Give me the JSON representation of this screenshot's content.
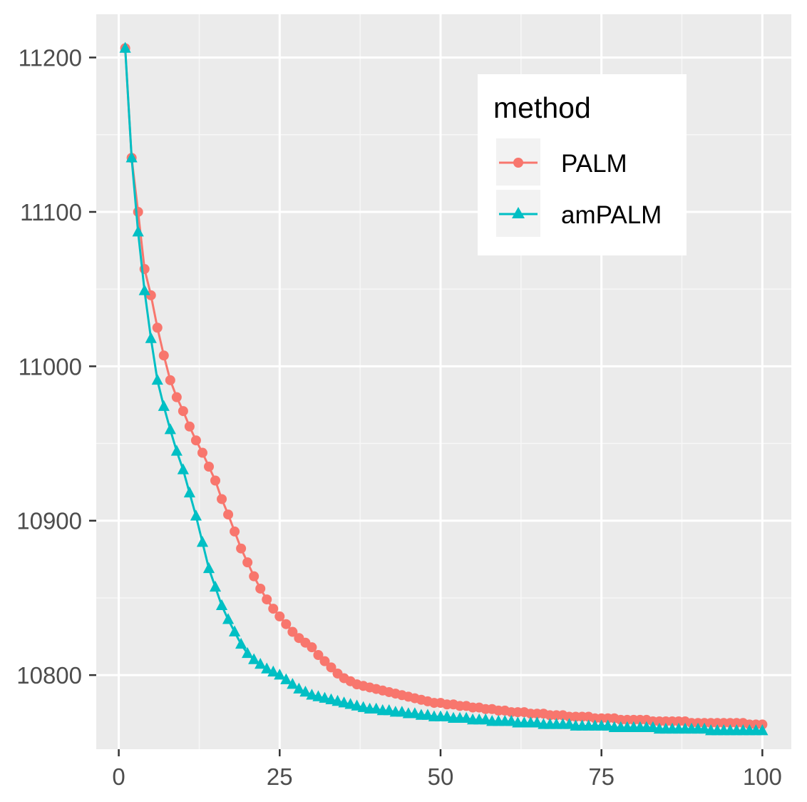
{
  "chart_data": {
    "type": "line",
    "title": "",
    "xlabel": "",
    "ylabel": "",
    "xlim": [
      -3.5,
      104.5
    ],
    "ylim": [
      10752,
      11228
    ],
    "x_ticks": [
      0,
      25,
      50,
      75,
      100
    ],
    "x_tick_labels": [
      "0",
      "25",
      "50",
      "75",
      "100"
    ],
    "y_ticks": [
      10800,
      10900,
      11000,
      11100,
      11200
    ],
    "y_tick_labels": [
      "10800",
      "10900",
      "11000",
      "11100",
      "11200"
    ],
    "grid": true,
    "legend": {
      "title": "method",
      "position": "top-right",
      "entries": [
        "PALM",
        "amPALM"
      ]
    },
    "series": [
      {
        "name": "PALM",
        "color": "#F8766D",
        "marker": "circle",
        "x": [
          1,
          2,
          3,
          4,
          5,
          6,
          7,
          8,
          9,
          10,
          11,
          12,
          13,
          14,
          15,
          16,
          17,
          18,
          19,
          20,
          21,
          22,
          23,
          24,
          25,
          26,
          27,
          28,
          29,
          30,
          31,
          32,
          33,
          34,
          35,
          36,
          37,
          38,
          39,
          40,
          41,
          42,
          43,
          44,
          45,
          46,
          47,
          48,
          49,
          50,
          51,
          52,
          53,
          54,
          55,
          56,
          57,
          58,
          59,
          60,
          61,
          62,
          63,
          64,
          65,
          66,
          67,
          68,
          69,
          70,
          71,
          72,
          73,
          74,
          75,
          76,
          77,
          78,
          79,
          80,
          81,
          82,
          83,
          84,
          85,
          86,
          87,
          88,
          89,
          90,
          91,
          92,
          93,
          94,
          95,
          96,
          97,
          98,
          99,
          100
        ],
        "values": [
          11206,
          11135,
          11100,
          11063,
          11046,
          11025,
          11007,
          10991,
          10980,
          10971,
          10961,
          10952,
          10944,
          10935,
          10926,
          10914,
          10904,
          10893,
          10882,
          10873,
          10864,
          10856,
          10849,
          10843,
          10838,
          10833,
          10828,
          10824,
          10821,
          10818,
          10813,
          10809,
          10805,
          10801,
          10798,
          10796,
          10794,
          10793,
          10792,
          10791,
          10790,
          10789,
          10788,
          10787,
          10786,
          10785,
          10784,
          10783,
          10782,
          10782,
          10781,
          10781,
          10780,
          10780,
          10779,
          10779,
          10778,
          10778,
          10777,
          10777,
          10776,
          10776,
          10776,
          10775,
          10775,
          10775,
          10774,
          10774,
          10774,
          10773,
          10773,
          10773,
          10773,
          10772,
          10772,
          10772,
          10772,
          10771,
          10771,
          10771,
          10771,
          10771,
          10770,
          10770,
          10770,
          10770,
          10770,
          10770,
          10769,
          10769,
          10769,
          10769,
          10769,
          10769,
          10769,
          10769,
          10769,
          10768,
          10768,
          10768
        ]
      },
      {
        "name": "amPALM",
        "color": "#00BFC4",
        "marker": "triangle",
        "x": [
          1,
          2,
          3,
          4,
          5,
          6,
          7,
          8,
          9,
          10,
          11,
          12,
          13,
          14,
          15,
          16,
          17,
          18,
          19,
          20,
          21,
          22,
          23,
          24,
          25,
          26,
          27,
          28,
          29,
          30,
          31,
          32,
          33,
          34,
          35,
          36,
          37,
          38,
          39,
          40,
          41,
          42,
          43,
          44,
          45,
          46,
          47,
          48,
          49,
          50,
          51,
          52,
          53,
          54,
          55,
          56,
          57,
          58,
          59,
          60,
          61,
          62,
          63,
          64,
          65,
          66,
          67,
          68,
          69,
          70,
          71,
          72,
          73,
          74,
          75,
          76,
          77,
          78,
          79,
          80,
          81,
          82,
          83,
          84,
          85,
          86,
          87,
          88,
          89,
          90,
          91,
          92,
          93,
          94,
          95,
          96,
          97,
          98,
          99,
          100
        ],
        "values": [
          11206,
          11135,
          11087,
          11049,
          11018,
          10991,
          10974,
          10959,
          10945,
          10933,
          10918,
          10903,
          10886,
          10869,
          10857,
          10845,
          10836,
          10828,
          10820,
          10814,
          10810,
          10807,
          10804,
          10802,
          10800,
          10797,
          10794,
          10791,
          10789,
          10787,
          10786,
          10785,
          10784,
          10783,
          10782,
          10781,
          10780,
          10779,
          10778,
          10778,
          10777,
          10777,
          10776,
          10776,
          10775,
          10775,
          10774,
          10774,
          10773,
          10773,
          10773,
          10772,
          10772,
          10772,
          10771,
          10771,
          10771,
          10770,
          10770,
          10770,
          10770,
          10769,
          10769,
          10769,
          10769,
          10768,
          10768,
          10768,
          10768,
          10768,
          10767,
          10767,
          10767,
          10767,
          10767,
          10767,
          10766,
          10766,
          10766,
          10766,
          10766,
          10766,
          10766,
          10765,
          10765,
          10765,
          10765,
          10765,
          10765,
          10765,
          10765,
          10764,
          10764,
          10764,
          10764,
          10764,
          10764,
          10764,
          10764,
          10764
        ]
      }
    ]
  }
}
